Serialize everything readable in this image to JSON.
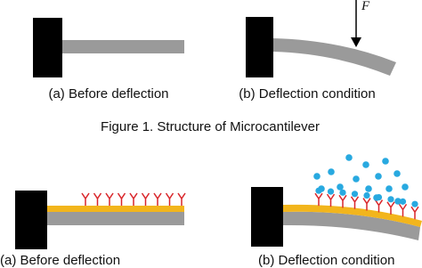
{
  "figure1": {
    "panel_a_caption": "(a) Before deflection",
    "panel_b_caption": "(b) Deflection condition",
    "force_label": "F",
    "caption": "Figure 1. Structure of Microcantilever"
  },
  "figure2": {
    "panel_a_caption": "(a) Before deflection",
    "panel_b_caption": "(b) Deflection condition"
  }
}
